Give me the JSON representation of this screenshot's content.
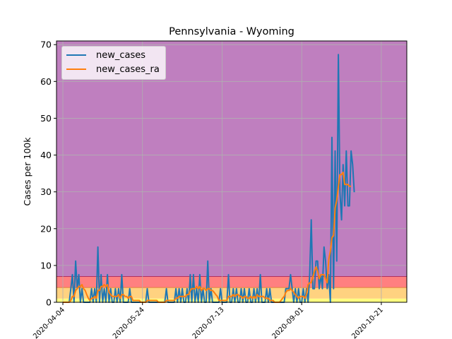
{
  "chart_data": {
    "type": "line",
    "title": "Pennsylvania - Wyoming",
    "xlabel": "",
    "ylabel": "Cases per 100k",
    "ylim": [
      0,
      71
    ],
    "xlim": [
      "2020-03-31",
      "2020-11-06"
    ],
    "x_tick_labels": [
      "2020-04-04",
      "2020-05-24",
      "2020-07-13",
      "2020-09-01",
      "2020-10-21"
    ],
    "y_ticks": [
      0,
      10,
      20,
      30,
      40,
      50,
      60,
      70
    ],
    "grid": true,
    "legend_position": "top-left",
    "background_bands": [
      {
        "from": 0,
        "to": 1,
        "color": "#ffff80"
      },
      {
        "from": 1,
        "to": 4,
        "color": "#ffd280"
      },
      {
        "from": 4,
        "to": 7,
        "color": "#ff8080"
      },
      {
        "from": 7,
        "to": 71,
        "color": "#bf7fbf"
      }
    ],
    "start_date": "2020-04-04",
    "series": [
      {
        "name": "new_cases",
        "color": "#1f77b4",
        "values": [
          0,
          0,
          0,
          0,
          0,
          3.7,
          7.5,
          0,
          11.2,
          3.7,
          7.5,
          0,
          3.7,
          0,
          0,
          0,
          0,
          0,
          3.7,
          0,
          3.7,
          0,
          15,
          0,
          7.5,
          0,
          3.7,
          0,
          7.5,
          0,
          3.7,
          0,
          0,
          3.7,
          0,
          3.7,
          0,
          7.5,
          0,
          0,
          0,
          0,
          3.7,
          0,
          0,
          0,
          0,
          0,
          0,
          0,
          0,
          0,
          0,
          3.7,
          0,
          0,
          0,
          0,
          0,
          0,
          0,
          0,
          0,
          0,
          0,
          3.7,
          0,
          0,
          0,
          0,
          0,
          3.7,
          0,
          3.7,
          0,
          3.7,
          0,
          0,
          3.7,
          0,
          7.5,
          0,
          7.5,
          0,
          3.7,
          0,
          7.5,
          0,
          3.7,
          0,
          0,
          11.2,
          0,
          3.7,
          0,
          0,
          0,
          0,
          0,
          3.7,
          0,
          0,
          0,
          0,
          7.5,
          0,
          0,
          3.7,
          0,
          3.7,
          0,
          0,
          3.7,
          0,
          3.7,
          0,
          0,
          3.7,
          0,
          0,
          3.7,
          0,
          3.7,
          0,
          7.5,
          0,
          0,
          0,
          3.7,
          0,
          3.7,
          0,
          0,
          0,
          0,
          0,
          0,
          0,
          0,
          0,
          3.7,
          3.7,
          3.7,
          7.5,
          3.7,
          0,
          3.7,
          0,
          3.7,
          0,
          0,
          3.7,
          0,
          3.7,
          0,
          7.5,
          22.4,
          3.7,
          3.7,
          11.2,
          11.2,
          3.7,
          7.5,
          3.7,
          15,
          11.2,
          3.7,
          7.5,
          0,
          44.8,
          3.7,
          41.1,
          11.2,
          67.3,
          29.9,
          22.4,
          37.4,
          26.2,
          41.1,
          26.2,
          26.2,
          41.1,
          37.4,
          29.9
        ],
        "stroke_width": 2
      },
      {
        "name": "new_cases_ra",
        "color": "#ff7f0e",
        "values": [
          0,
          0,
          0,
          0,
          0,
          0.5,
          1.6,
          1.6,
          3.2,
          3.7,
          4.3,
          4.3,
          4.8,
          3.7,
          3.2,
          2.1,
          1.1,
          0.5,
          1.1,
          1.1,
          1.6,
          1.1,
          3.2,
          3.2,
          4.3,
          4.3,
          4.8,
          4.3,
          4.8,
          2.7,
          2.1,
          1.6,
          1.6,
          1.6,
          1.6,
          2.1,
          1.1,
          2.1,
          2.1,
          1.6,
          1.6,
          1.1,
          1.6,
          1.6,
          0.5,
          0.5,
          0.5,
          0.5,
          0.5,
          0,
          0,
          0,
          0,
          0.5,
          0.5,
          0.5,
          0.5,
          0.5,
          0.5,
          0.5,
          0,
          0,
          0,
          0,
          0,
          0.5,
          0.5,
          0.5,
          0.5,
          0.5,
          0.5,
          1.1,
          1.1,
          1.6,
          1.6,
          1.6,
          1.6,
          1.6,
          2.1,
          2.1,
          3.2,
          3.7,
          3.7,
          3.7,
          4.3,
          3.7,
          4.3,
          3.2,
          3.7,
          3.7,
          3.2,
          3.7,
          3.7,
          3.2,
          3.2,
          2.7,
          2.1,
          1.6,
          0.5,
          0.5,
          0.5,
          0.5,
          0.5,
          0.5,
          1.6,
          1.6,
          1.6,
          2.1,
          1.6,
          2.1,
          2.1,
          1.6,
          1.6,
          1.1,
          1.6,
          1.6,
          1.1,
          1.1,
          1.6,
          1.1,
          1.6,
          1.1,
          2.1,
          1.6,
          1.6,
          1.6,
          1.6,
          1.1,
          1.1,
          1.1,
          0.5,
          0.5,
          0.5,
          0,
          0,
          0,
          0,
          0.5,
          1.1,
          1.6,
          2.7,
          3.2,
          3.2,
          3.7,
          3.2,
          2.7,
          2.1,
          1.6,
          1.1,
          1.6,
          1.6,
          1.6,
          1.1,
          2.1,
          4.8,
          5.3,
          5.3,
          6.9,
          8.5,
          9.6,
          8.5,
          6.4,
          7.5,
          7.5,
          7.5,
          6.4,
          5.3,
          11.7,
          13.9,
          17.6,
          18.1,
          25.6,
          27.7,
          31.4,
          34.7,
          34.7,
          35.3,
          32.0,
          32.0,
          32.0,
          31.5,
          31.5
        ]
      }
    ]
  }
}
